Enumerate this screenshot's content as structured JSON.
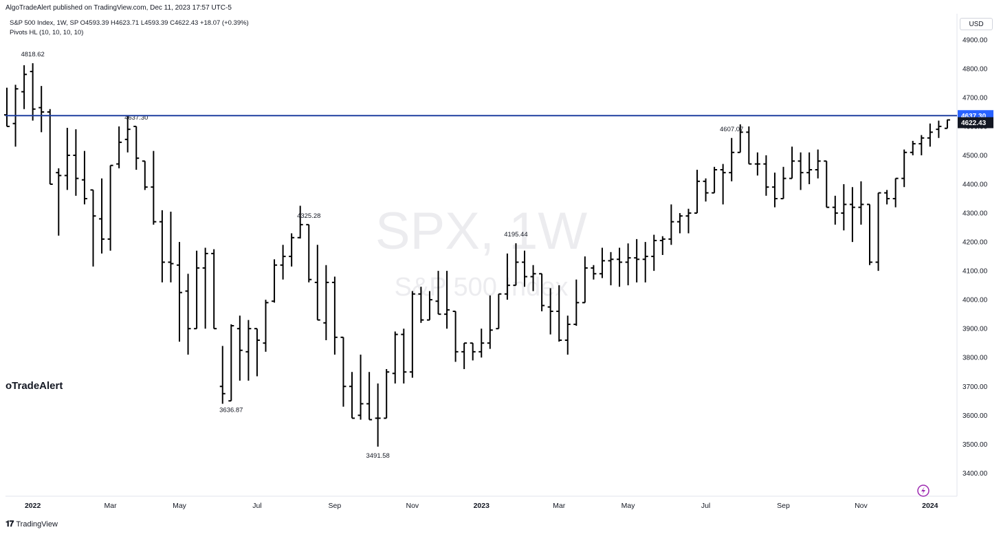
{
  "header": {
    "publisher": "AlgoTradeAlert published on TradingView.com, Dec 11, 2023 17:57 UTC-5",
    "symbol_line": "S&P 500 Index, 1W, SP  O4593.39  H4623.71  L4593.39  C4622.43  +18.07 (+0.39%)",
    "indicator": "Pivots HL (10, 10, 10, 10)"
  },
  "currency": "USD",
  "watermark": {
    "symbol": "SPX, 1W",
    "name": "S&P 500 Index"
  },
  "author_watermark": "oTradeAlert",
  "footer": {
    "brand_icon": "tv-logo-icon",
    "brand": "TradingView"
  },
  "colors": {
    "bars": "#000000",
    "hline": "#1e3fa0",
    "hline_label_bg": "#2962ff",
    "last_label_bg": "#131722",
    "lightning": "#9c27b0"
  },
  "chart_data": {
    "type": "ohlc",
    "title": "S&P 500 Index, 1W, SP",
    "ylim": [
      3320,
      4990
    ],
    "y_ticks": [
      3400,
      3500,
      3600,
      3700,
      3800,
      3900,
      4000,
      4100,
      4200,
      4300,
      4400,
      4500,
      4600,
      4700,
      4800,
      4900
    ],
    "x_ticks": [
      {
        "label": "2022",
        "bar": 3,
        "bold": true
      },
      {
        "label": "Mar",
        "bar": 12
      },
      {
        "label": "May",
        "bar": 20
      },
      {
        "label": "Jul",
        "bar": 29
      },
      {
        "label": "Sep",
        "bar": 38
      },
      {
        "label": "Nov",
        "bar": 47
      },
      {
        "label": "2023",
        "bar": 55,
        "bold": true
      },
      {
        "label": "Mar",
        "bar": 64
      },
      {
        "label": "May",
        "bar": 72
      },
      {
        "label": "Jul",
        "bar": 81
      },
      {
        "label": "Sep",
        "bar": 90
      },
      {
        "label": "Nov",
        "bar": 99
      },
      {
        "label": "2024",
        "bar": 107,
        "bold": true
      }
    ],
    "pivot_labels": [
      {
        "text": "4818.62",
        "bar": 3,
        "pos": "above"
      },
      {
        "text": "4637.30",
        "bar": 15,
        "pos": "above"
      },
      {
        "text": "3636.87",
        "bar": 26,
        "pos": "below"
      },
      {
        "text": "4325.28",
        "bar": 35,
        "pos": "above"
      },
      {
        "text": "3491.58",
        "bar": 43,
        "pos": "below"
      },
      {
        "text": "4195.44",
        "bar": 59,
        "pos": "above"
      },
      {
        "text": "4607.07",
        "bar": 84,
        "pos": "above"
      }
    ],
    "hline": {
      "value": 4637.3,
      "label": "4637.30"
    },
    "last_price": {
      "value": 4622.43,
      "label": "4622.43"
    },
    "bars": [
      [
        4640,
        4734,
        4600,
        4600
      ],
      [
        4610,
        4744,
        4530,
        4730
      ],
      [
        4720,
        4812,
        4660,
        4780
      ],
      [
        4790,
        4818.62,
        4620,
        4660
      ],
      [
        4665,
        4740,
        4580,
        4650
      ],
      [
        4650,
        4660,
        4400,
        4400
      ],
      [
        4440,
        4455,
        4222,
        4430
      ],
      [
        4430,
        4595,
        4380,
        4500
      ],
      [
        4500,
        4590,
        4360,
        4420
      ],
      [
        4415,
        4515,
        4330,
        4350
      ],
      [
        4380,
        4380,
        4115,
        4290
      ],
      [
        4280,
        4420,
        4160,
        4210
      ],
      [
        4210,
        4465,
        4170,
        4465
      ],
      [
        4470,
        4600,
        4455,
        4545
      ],
      [
        4555,
        4637.3,
        4510,
        4590
      ],
      [
        4600,
        4595,
        4450,
        4490
      ],
      [
        4480,
        4420,
        4380,
        4390
      ],
      [
        4390,
        4515,
        4260,
        4270
      ],
      [
        4270,
        4310,
        4060,
        4130
      ],
      [
        4130,
        4305,
        4060,
        4125
      ],
      [
        4120,
        4200,
        3855,
        4025
      ],
      [
        4030,
        4090,
        3810,
        3900
      ],
      [
        3900,
        4170,
        3900,
        4110
      ],
      [
        4110,
        4180,
        3900,
        4160
      ],
      [
        4160,
        4175,
        3900,
        3900
      ],
      [
        3700,
        3840,
        3640,
        3675
      ],
      [
        3650,
        3915,
        3720,
        3910
      ],
      [
        3900,
        3945,
        3720,
        3825
      ],
      [
        3820,
        3930,
        3720,
        3900
      ],
      [
        3900,
        3880,
        3735,
        3860
      ],
      [
        3850,
        4000,
        3820,
        3990
      ],
      [
        3995,
        4140,
        3990,
        4120
      ],
      [
        4120,
        4190,
        4070,
        4150
      ],
      [
        4150,
        4230,
        4115,
        4215
      ],
      [
        4215,
        4325.28,
        4212,
        4260
      ],
      [
        4260,
        4210,
        4060,
        4070
      ],
      [
        4060,
        4190,
        3930,
        3930
      ],
      [
        3920,
        4120,
        3860,
        4060
      ],
      [
        4060,
        4080,
        3810,
        3870
      ],
      [
        3870,
        3720,
        3630,
        3700
      ],
      [
        3700,
        3750,
        3590,
        3590
      ],
      [
        3600,
        3810,
        3585,
        3640
      ],
      [
        3640,
        3750,
        3590,
        3585
      ],
      [
        3590,
        3710,
        3491.58,
        3590
      ],
      [
        3590,
        3760,
        3600,
        3750
      ],
      [
        3745,
        3890,
        3710,
        3880
      ],
      [
        3880,
        3900,
        3710,
        3750
      ],
      [
        3750,
        4030,
        3730,
        4020
      ],
      [
        4020,
        4045,
        3920,
        3930
      ],
      [
        3930,
        4030,
        3940,
        4000
      ],
      [
        3995,
        4100,
        3950,
        3950
      ],
      [
        3950,
        4100,
        3900,
        3965
      ],
      [
        3960,
        3840,
        3785,
        3820
      ],
      [
        3820,
        3830,
        3760,
        3850
      ],
      [
        3850,
        3840,
        3790,
        3820
      ],
      [
        3820,
        3900,
        3800,
        3850
      ],
      [
        3850,
        4015,
        3830,
        3895
      ],
      [
        3900,
        4020,
        3900,
        4020
      ],
      [
        4020,
        4160,
        4000,
        4050
      ],
      [
        4050,
        4195.44,
        4060,
        4130
      ],
      [
        4130,
        4170,
        4045,
        4080
      ],
      [
        4080,
        4120,
        4030,
        4090
      ],
      [
        4090,
        3940,
        3960,
        3980
      ],
      [
        3975,
        4040,
        3880,
        3960
      ],
      [
        3960,
        4050,
        3855,
        3860
      ],
      [
        3860,
        3945,
        3810,
        3915
      ],
      [
        3915,
        4070,
        3910,
        3990
      ],
      [
        3990,
        4150,
        3990,
        4110
      ],
      [
        4110,
        4120,
        4070,
        4090
      ],
      [
        4090,
        4180,
        4075,
        4135
      ],
      [
        4135,
        4165,
        4050,
        4140
      ],
      [
        4140,
        4180,
        4045,
        4130
      ],
      [
        4130,
        4195,
        4050,
        4145
      ],
      [
        4145,
        4210,
        4060,
        4140
      ],
      [
        4140,
        4200,
        4060,
        4150
      ],
      [
        4150,
        4225,
        4100,
        4205
      ],
      [
        4205,
        4220,
        4155,
        4210
      ],
      [
        4210,
        4330,
        4190,
        4270
      ],
      [
        4270,
        4300,
        4230,
        4290
      ],
      [
        4290,
        4315,
        4230,
        4300
      ],
      [
        4300,
        4450,
        4320,
        4410
      ],
      [
        4410,
        4420,
        4340,
        4370
      ],
      [
        4370,
        4460,
        4380,
        4450
      ],
      [
        4450,
        4470,
        4330,
        4440
      ],
      [
        4440,
        4560,
        4410,
        4510
      ],
      [
        4510,
        4607.07,
        4515,
        4580
      ],
      [
        4580,
        4600,
        4480,
        4470
      ],
      [
        4470,
        4510,
        4430,
        4470
      ],
      [
        4470,
        4500,
        4360,
        4390
      ],
      [
        4390,
        4440,
        4320,
        4350
      ],
      [
        4350,
        4460,
        4380,
        4420
      ],
      [
        4420,
        4530,
        4420,
        4480
      ],
      [
        4480,
        4510,
        4380,
        4440
      ],
      [
        4440,
        4510,
        4400,
        4450
      ],
      [
        4450,
        4520,
        4420,
        4480
      ],
      [
        4480,
        4460,
        4320,
        4320
      ],
      [
        4320,
        4360,
        4260,
        4300
      ],
      [
        4300,
        4400,
        4240,
        4330
      ],
      [
        4330,
        4390,
        4200,
        4320
      ],
      [
        4320,
        4410,
        4260,
        4330
      ],
      [
        4330,
        4250,
        4120,
        4130
      ],
      [
        4130,
        4370,
        4100,
        4370
      ],
      [
        4370,
        4380,
        4330,
        4350
      ],
      [
        4350,
        4420,
        4320,
        4420
      ],
      [
        4420,
        4520,
        4390,
        4510
      ],
      [
        4510,
        4550,
        4500,
        4540
      ],
      [
        4540,
        4570,
        4500,
        4560
      ],
      [
        4560,
        4610,
        4530,
        4580
      ],
      [
        4590,
        4620,
        4560,
        4600
      ],
      [
        4593.39,
        4623.71,
        4593.39,
        4622.43
      ]
    ]
  }
}
